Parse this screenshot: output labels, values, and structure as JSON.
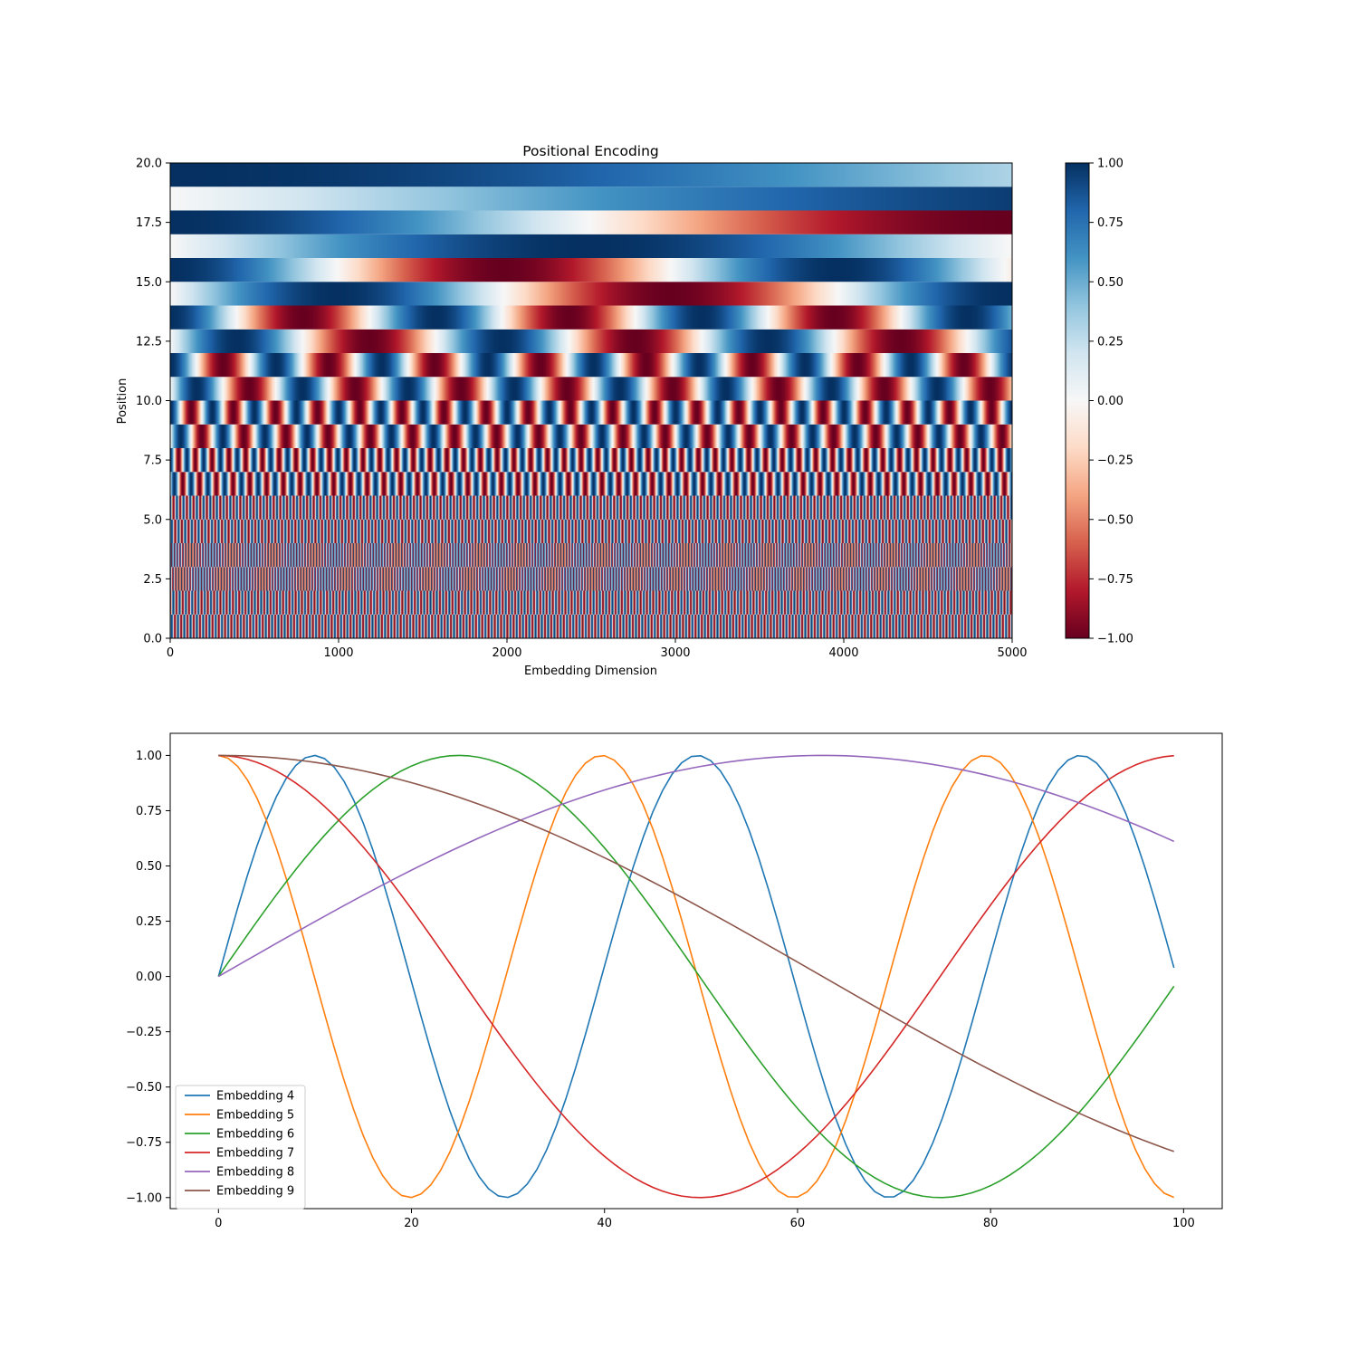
{
  "chart_data": [
    {
      "type": "heatmap",
      "title": "Positional Encoding",
      "xlabel": "Embedding Dimension",
      "ylabel": "Position",
      "xlim": [
        0,
        5000
      ],
      "ylim": [
        0,
        20
      ],
      "rows": 20,
      "xticks": [
        "0",
        "1000",
        "2000",
        "3000",
        "4000",
        "5000"
      ],
      "xtick_values": [
        0,
        1000,
        2000,
        3000,
        4000,
        5000
      ],
      "yticks": [
        "0.0",
        "2.5",
        "5.0",
        "7.5",
        "10.0",
        "12.5",
        "15.0",
        "17.5",
        "20.0"
      ],
      "ytick_values": [
        0,
        2.5,
        5,
        7.5,
        10,
        12.5,
        15,
        17.5,
        20
      ],
      "colormap": "RdBu",
      "colorbar": {
        "range": [
          -1,
          1
        ],
        "ticks": [
          "1.00",
          "0.75",
          "0.50",
          "0.25",
          "0.00",
          "−0.25",
          "−0.50",
          "−0.75",
          "−1.00"
        ],
        "tick_values": [
          1,
          0.75,
          0.5,
          0.25,
          0,
          -0.25,
          -0.5,
          -0.75,
          -1
        ]
      },
      "formula": "even rows: sin(x / 10000^(row/20)); odd rows: cos(x / 10000^((row-1)/20))"
    },
    {
      "type": "line",
      "title": "",
      "xlabel": "",
      "ylabel": "",
      "xlim": [
        -5,
        104
      ],
      "ylim": [
        -1.05,
        1.1
      ],
      "x_range": [
        0,
        99
      ],
      "xticks": [
        "0",
        "20",
        "40",
        "60",
        "80",
        "100"
      ],
      "xtick_values": [
        0,
        20,
        40,
        60,
        80,
        100
      ],
      "yticks": [
        "1.00",
        "0.75",
        "0.50",
        "0.25",
        "0.00",
        "−0.25",
        "−0.50",
        "−0.75",
        "−1.00"
      ],
      "ytick_values": [
        1,
        0.75,
        0.5,
        0.25,
        0,
        -0.25,
        -0.5,
        -0.75,
        -1
      ],
      "legend_position": "lower-left",
      "series": [
        {
          "name": "Embedding 4",
          "color": "#1f77b4",
          "function": "sin",
          "period": 39.7
        },
        {
          "name": "Embedding 5",
          "color": "#ff7f0e",
          "function": "cos",
          "period": 39.7
        },
        {
          "name": "Embedding 6",
          "color": "#2ca02c",
          "function": "sin",
          "period": 99.7
        },
        {
          "name": "Embedding 7",
          "color": "#d62728",
          "function": "cos",
          "period": 99.7
        },
        {
          "name": "Embedding 8",
          "color": "#9467bd",
          "function": "sin",
          "period": 250.4
        },
        {
          "name": "Embedding 9",
          "color": "#8c564b",
          "function": "cos",
          "period": 250.4
        }
      ]
    }
  ]
}
